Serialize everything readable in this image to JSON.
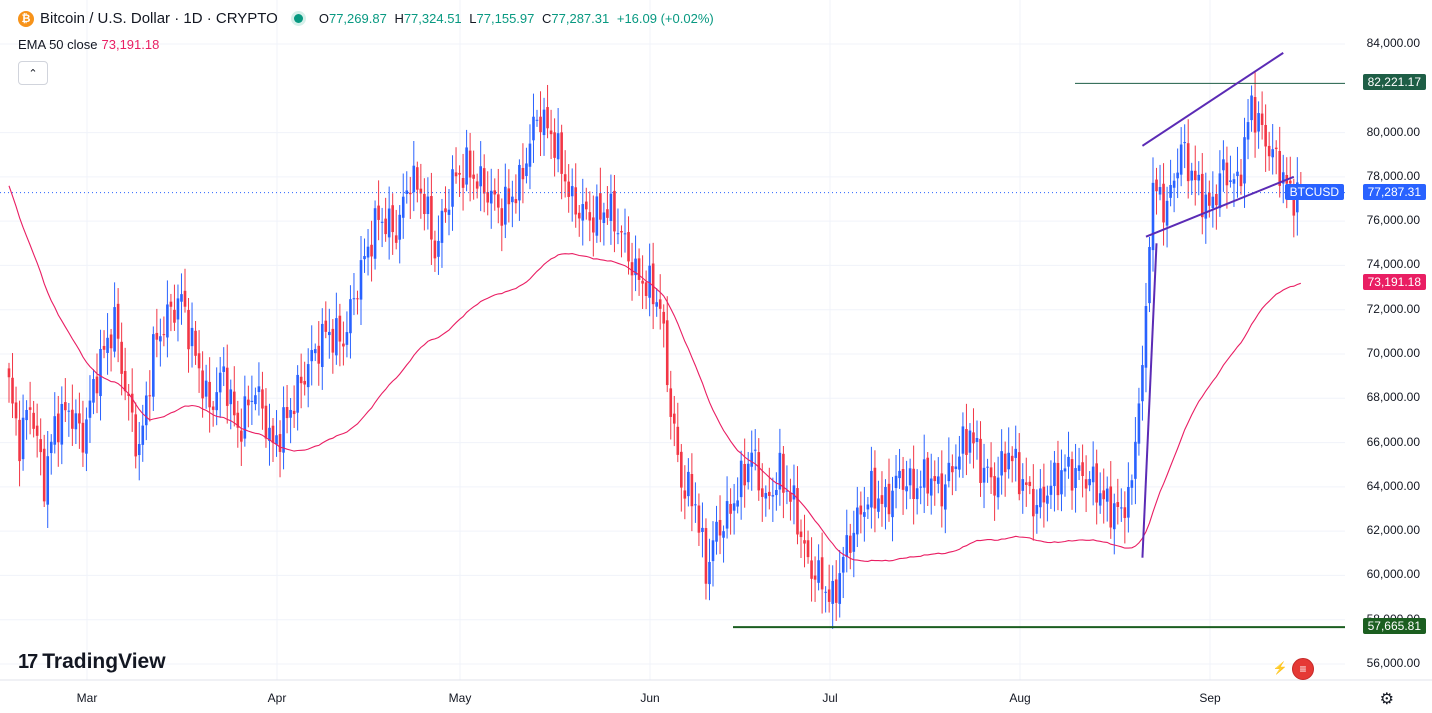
{
  "header": {
    "symbol_title": "Bitcoin / U.S. Dollar · 1D · CRYPTO",
    "coin_glyph": "₿",
    "ohlc": {
      "o_label": "O",
      "o_value": "77,269.87",
      "h_label": "H",
      "h_value": "77,324.51",
      "l_label": "L",
      "l_value": "77,155.97",
      "c_label": "C",
      "c_value": "77,287.31",
      "change": "+16.09 (+0.02%)"
    }
  },
  "indicator": {
    "label": "EMA 50 close",
    "value": "73,191.18"
  },
  "collapse_glyph": "⌃",
  "y_axis": {
    "labels": [
      "84,000.00",
      "80,000.00",
      "78,000.00",
      "76,000.00",
      "74,000.00",
      "72,000.00",
      "70,000.00",
      "68,000.00",
      "66,000.00",
      "64,000.00",
      "62,000.00",
      "60,000.00",
      "58,000.00",
      "56,000.00"
    ],
    "values": [
      84000,
      80000,
      78000,
      76000,
      74000,
      72000,
      70000,
      68000,
      66000,
      64000,
      62000,
      60000,
      58000,
      56000
    ]
  },
  "badges": {
    "high_line": {
      "text": "82,221.17",
      "value": 82221.17
    },
    "symbol": "BTCUSD",
    "price": {
      "text": "77,287.31",
      "value": 77287.31
    },
    "ema": {
      "text": "73,191.18",
      "value": 73191.18
    },
    "low_line": {
      "text": "57,665.81",
      "value": 57665.81
    }
  },
  "x_axis": {
    "labels": [
      "Mar",
      "Apr",
      "May",
      "Jun",
      "Jul",
      "Aug",
      "Sep"
    ]
  },
  "branding": {
    "logo_text": "TradingView",
    "logo_mark": "17"
  },
  "icons": {
    "settings": "gear-icon",
    "collapse": "chevron-up-icon",
    "flags": "us-flag-icon"
  },
  "colors": {
    "up": "#2962ff",
    "down": "#f23645",
    "ema": "#e91e63",
    "level": "#1b5e20",
    "pattern": "#5b2bb5",
    "price_line": "#2962ff"
  },
  "chart_data": {
    "type": "candlestick",
    "symbol": "BTCUSD",
    "timeframe": "1D",
    "y_range": [
      55500,
      85000
    ],
    "close_anchors": [
      [
        0,
        68500
      ],
      [
        3,
        66000
      ],
      [
        6,
        67800
      ],
      [
        10,
        64200
      ],
      [
        13,
        66800
      ],
      [
        17,
        67500
      ],
      [
        21,
        66200
      ],
      [
        25,
        69200
      ],
      [
        30,
        71500
      ],
      [
        33,
        68500
      ],
      [
        37,
        65500
      ],
      [
        41,
        70200
      ],
      [
        45,
        71700
      ],
      [
        49,
        72500
      ],
      [
        52,
        70500
      ],
      [
        57,
        67500
      ],
      [
        61,
        69200
      ],
      [
        65,
        66500
      ],
      [
        70,
        68500
      ],
      [
        75,
        65800
      ],
      [
        80,
        67500
      ],
      [
        85,
        69500
      ],
      [
        90,
        71000
      ],
      [
        95,
        70600
      ],
      [
        100,
        73800
      ],
      [
        105,
        76200
      ],
      [
        110,
        75500
      ],
      [
        114,
        78000
      ],
      [
        118,
        77000
      ],
      [
        121,
        74600
      ],
      [
        126,
        77800
      ],
      [
        130,
        78400
      ],
      [
        135,
        77500
      ],
      [
        140,
        76500
      ],
      [
        145,
        77600
      ],
      [
        150,
        80800
      ],
      [
        154,
        80000
      ],
      [
        157,
        78500
      ],
      [
        160,
        76800
      ],
      [
        163,
        76400
      ],
      [
        166,
        76100
      ],
      [
        170,
        76600
      ],
      [
        174,
        75400
      ],
      [
        178,
        73600
      ],
      [
        182,
        73000
      ],
      [
        185,
        72200
      ],
      [
        188,
        67500
      ],
      [
        191,
        64200
      ],
      [
        195,
        63300
      ],
      [
        198,
        60200
      ],
      [
        201,
        62000
      ],
      [
        204,
        62600
      ],
      [
        208,
        64200
      ],
      [
        211,
        65600
      ],
      [
        215,
        63200
      ],
      [
        219,
        64600
      ],
      [
        223,
        63200
      ],
      [
        227,
        60500
      ],
      [
        231,
        59700
      ],
      [
        234,
        58800
      ],
      [
        237,
        60800
      ],
      [
        241,
        62500
      ],
      [
        245,
        63800
      ],
      [
        249,
        63200
      ],
      [
        253,
        64500
      ],
      [
        257,
        63900
      ],
      [
        261,
        64500
      ],
      [
        265,
        63800
      ],
      [
        269,
        65200
      ],
      [
        273,
        66500
      ],
      [
        276,
        65000
      ],
      [
        280,
        64100
      ],
      [
        284,
        65600
      ],
      [
        288,
        64200
      ],
      [
        292,
        63100
      ],
      [
        296,
        64100
      ],
      [
        300,
        64800
      ],
      [
        304,
        64600
      ],
      [
        308,
        64200
      ],
      [
        312,
        63200
      ],
      [
        316,
        62800
      ],
      [
        319,
        64300
      ],
      [
        322,
        69500
      ],
      [
        325,
        77500
      ],
      [
        329,
        76600
      ],
      [
        333,
        79300
      ],
      [
        337,
        77800
      ],
      [
        341,
        76500
      ],
      [
        345,
        78300
      ],
      [
        349,
        77600
      ],
      [
        353,
        81300
      ],
      [
        357,
        79600
      ],
      [
        361,
        78400
      ],
      [
        364,
        77200
      ],
      [
        367,
        77287
      ]
    ],
    "ema_period": 50,
    "ema_last": 73191.18,
    "annotations": {
      "high_line": 82221.17,
      "low_line": 57665.81,
      "channel_upper": [
        [
          322,
          79400
        ],
        [
          362,
          83600
        ]
      ],
      "channel_lower": [
        [
          323,
          75300
        ],
        [
          365,
          78000
        ]
      ],
      "trend_line": [
        [
          322,
          60800
        ],
        [
          326,
          75000
        ]
      ]
    }
  }
}
